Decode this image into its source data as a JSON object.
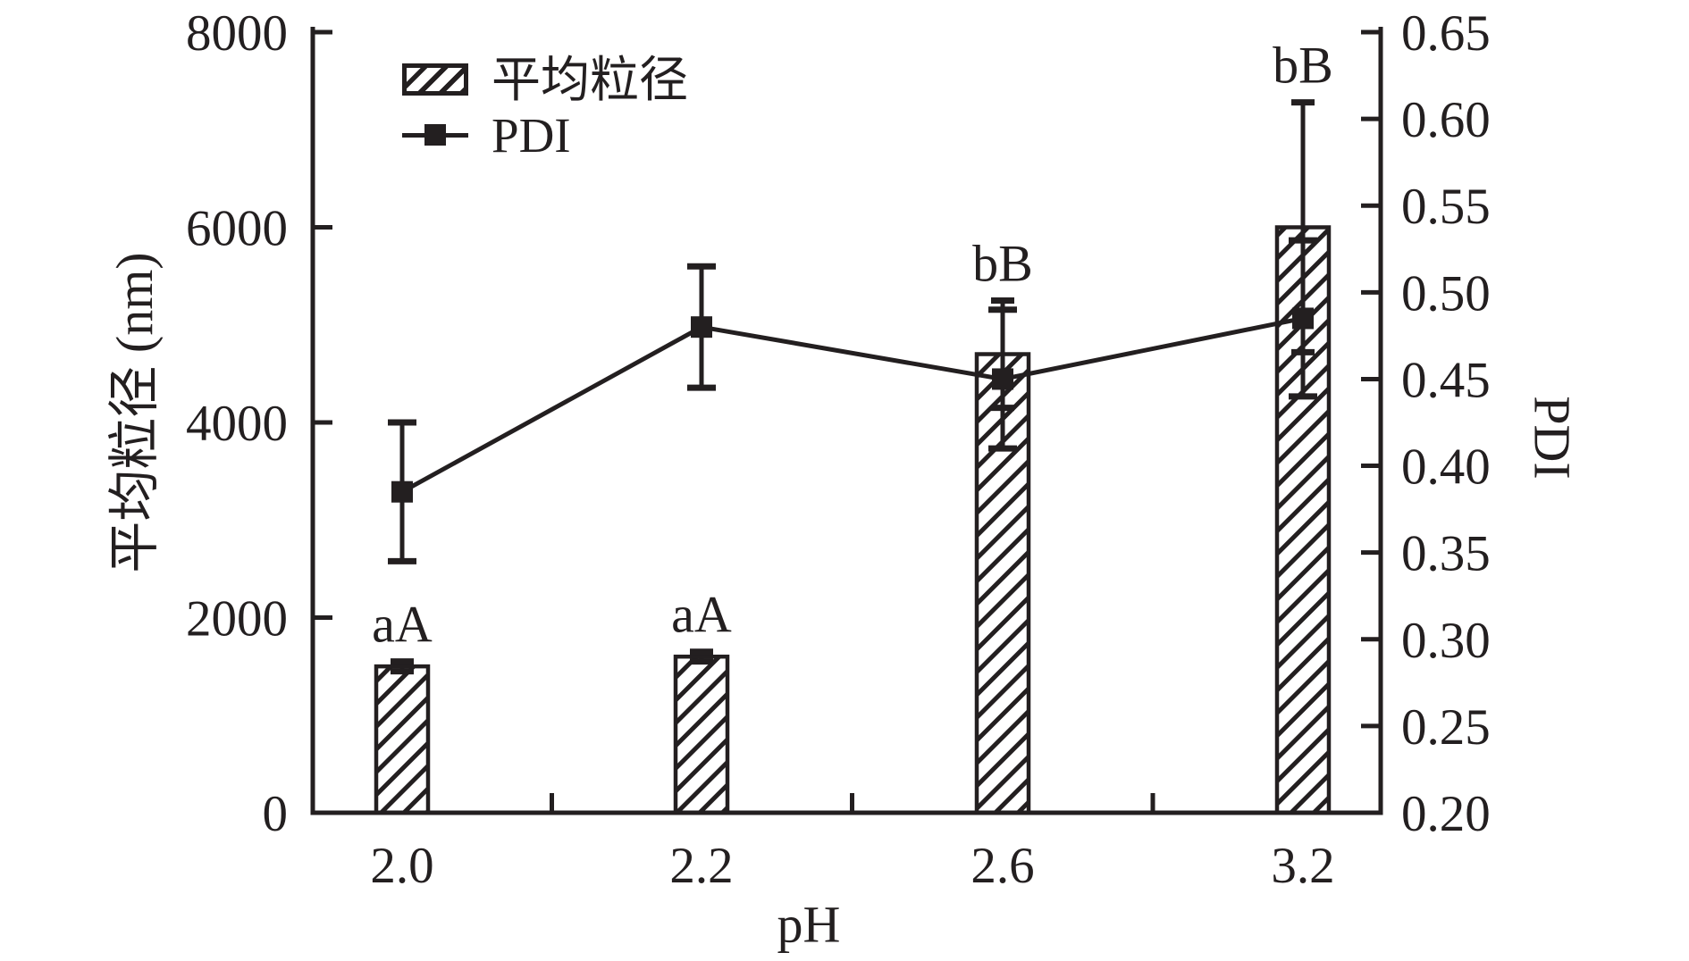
{
  "chart_data": {
    "type": "bar",
    "subtype": "dual-axis bar+line with error bars",
    "categories": [
      "2.0",
      "2.2",
      "2.6",
      "3.2"
    ],
    "xlabel": "pH",
    "annotations": [
      "aA",
      "aA",
      "bB",
      "bB"
    ],
    "series": [
      {
        "name": "平均粒径",
        "type": "bar",
        "axis": "left",
        "values": [
          1500,
          1600,
          4700,
          6000
        ],
        "errors": [
          50,
          50,
          550,
          1280
        ]
      },
      {
        "name": "PDI",
        "type": "line",
        "axis": "right",
        "values": [
          0.385,
          0.48,
          0.45,
          0.485
        ],
        "errors": [
          0.04,
          0.035,
          0.04,
          0.045
        ]
      }
    ],
    "left_axis": {
      "label": "平均粒径 (nm)",
      "min": 0,
      "max": 8000,
      "ticks": [
        0,
        2000,
        4000,
        6000,
        8000
      ],
      "tick_labels": [
        "0",
        "2000",
        "4000",
        "6000",
        "8000"
      ]
    },
    "right_axis": {
      "label": "PDI",
      "min": 0.2,
      "max": 0.65,
      "ticks": [
        0.2,
        0.25,
        0.3,
        0.35,
        0.4,
        0.45,
        0.5,
        0.55,
        0.6,
        0.65
      ],
      "tick_labels": [
        "0.20",
        "0.25",
        "0.30",
        "0.35",
        "0.40",
        "0.45",
        "0.50",
        "0.55",
        "0.60",
        "0.65"
      ]
    },
    "grid": false,
    "legend_position": "top-left-inside",
    "ink_color": "#231f20",
    "background_color": "#ffffff"
  }
}
